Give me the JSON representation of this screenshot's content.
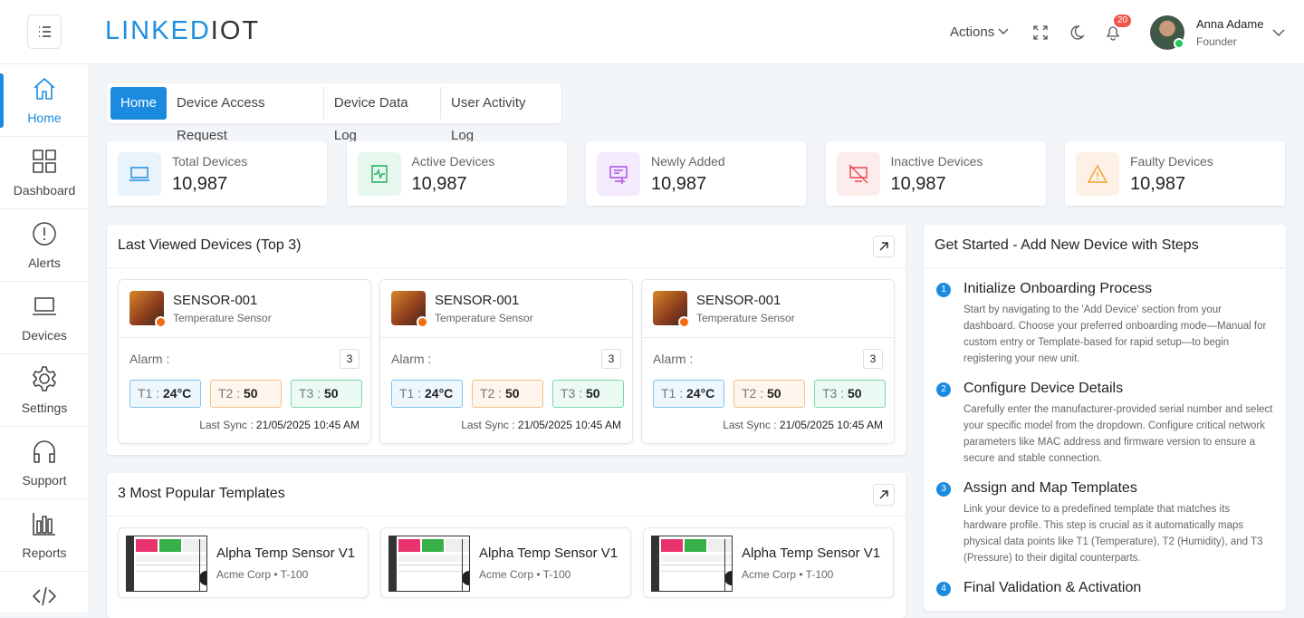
{
  "header": {
    "logo_main": "LINKED",
    "logo_accent": "IOT",
    "actions": "Actions",
    "notification_count": 20,
    "user_name": "Anna Adame",
    "user_role": "Founder"
  },
  "sidebar": [
    "Home",
    "Dashboard",
    "Alerts",
    "Devices",
    "Settings",
    "Support",
    "Reports"
  ],
  "tabs": [
    "Home",
    "Device Access Request",
    "Device Data Log",
    "User Activity Log"
  ],
  "stats": [
    {
      "label": "Total Devices",
      "value": "10,987"
    },
    {
      "label": "Active Devices",
      "value": "10,987"
    },
    {
      "label": "Newly Added",
      "value": "10,987"
    },
    {
      "label": "Inactive Devices",
      "value": "10,987"
    },
    {
      "label": "Faulty Devices",
      "value": "10,987"
    }
  ],
  "last_viewed": {
    "title": "Last Viewed Devices (Top 3)",
    "devices": [
      {
        "name": "SENSOR-001",
        "type": "Temperature Sensor",
        "alarm_label": "Alarm :",
        "alarm_count": 3,
        "readings": [
          {
            "label": "T1 :",
            "value": "24°C"
          },
          {
            "label": "T2 :",
            "value": "50"
          },
          {
            "label": "T3 :",
            "value": "50"
          }
        ],
        "sync_label": "Last Sync :",
        "sync_time": "21/05/2025 10:45 AM"
      },
      {
        "name": "SENSOR-001",
        "type": "Temperature Sensor",
        "alarm_label": "Alarm :",
        "alarm_count": 3,
        "readings": [
          {
            "label": "T1 :",
            "value": "24°C"
          },
          {
            "label": "T2 :",
            "value": "50"
          },
          {
            "label": "T3 :",
            "value": "50"
          }
        ],
        "sync_label": "Last Sync :",
        "sync_time": "21/05/2025 10:45 AM"
      },
      {
        "name": "SENSOR-001",
        "type": "Temperature Sensor",
        "alarm_label": "Alarm :",
        "alarm_count": 3,
        "readings": [
          {
            "label": "T1 :",
            "value": "24°C"
          },
          {
            "label": "T2 :",
            "value": "50"
          },
          {
            "label": "T3 :",
            "value": "50"
          }
        ],
        "sync_label": "Last Sync :",
        "sync_time": "21/05/2025 10:45 AM"
      }
    ]
  },
  "templates": {
    "title": "3 Most Popular Templates",
    "items": [
      {
        "name": "Alpha Temp Sensor V1",
        "meta": "Acme Corp • T-100"
      },
      {
        "name": "Alpha Temp Sensor V1",
        "meta": "Acme Corp • T-100"
      },
      {
        "name": "Alpha Temp Sensor V1",
        "meta": "Acme Corp • T-100"
      }
    ]
  },
  "get_started": {
    "title": "Get Started - Add New Device with Steps",
    "steps": [
      {
        "number": 1,
        "title": "Initialize Onboarding Process",
        "description": "Start by navigating to the 'Add Device' section from your dashboard. Choose your preferred onboarding mode—Manual for custom entry or Template-based for rapid setup—to begin registering your new unit."
      },
      {
        "number": 2,
        "title": "Configure Device Details",
        "description": "Carefully enter the manufacturer-provided serial number and select your specific model from the dropdown. Configure critical network parameters like MAC address and firmware version to ensure a secure and stable connection."
      },
      {
        "number": 3,
        "title": "Assign and Map Templates",
        "description": "Link your device to a predefined template that matches its hardware profile. This step is crucial as it automatically maps physical data points like T1 (Temperature), T2 (Humidity), and T3 (Pressure) to their digital counterparts."
      },
      {
        "number": 4,
        "title": "Final Validation & Activation"
      }
    ]
  }
}
